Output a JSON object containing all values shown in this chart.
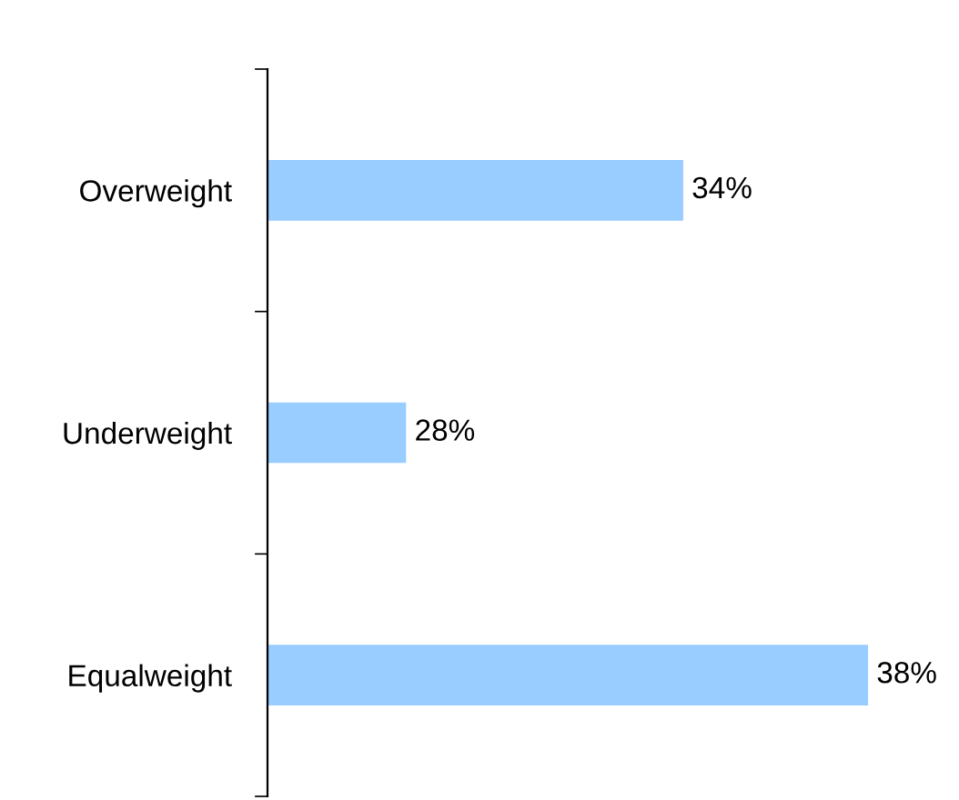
{
  "chart_data": {
    "type": "bar",
    "orientation": "horizontal",
    "categories": [
      "Overweight",
      "Underweight",
      "Equalweight"
    ],
    "values": [
      34,
      28,
      38
    ],
    "color": "#99ccff",
    "xlim": [
      25,
      38
    ],
    "data_labels": true,
    "value_labels": [
      "34%",
      "28%",
      "38%"
    ],
    "tick_labels": "y",
    "grid": false,
    "legend": false
  }
}
